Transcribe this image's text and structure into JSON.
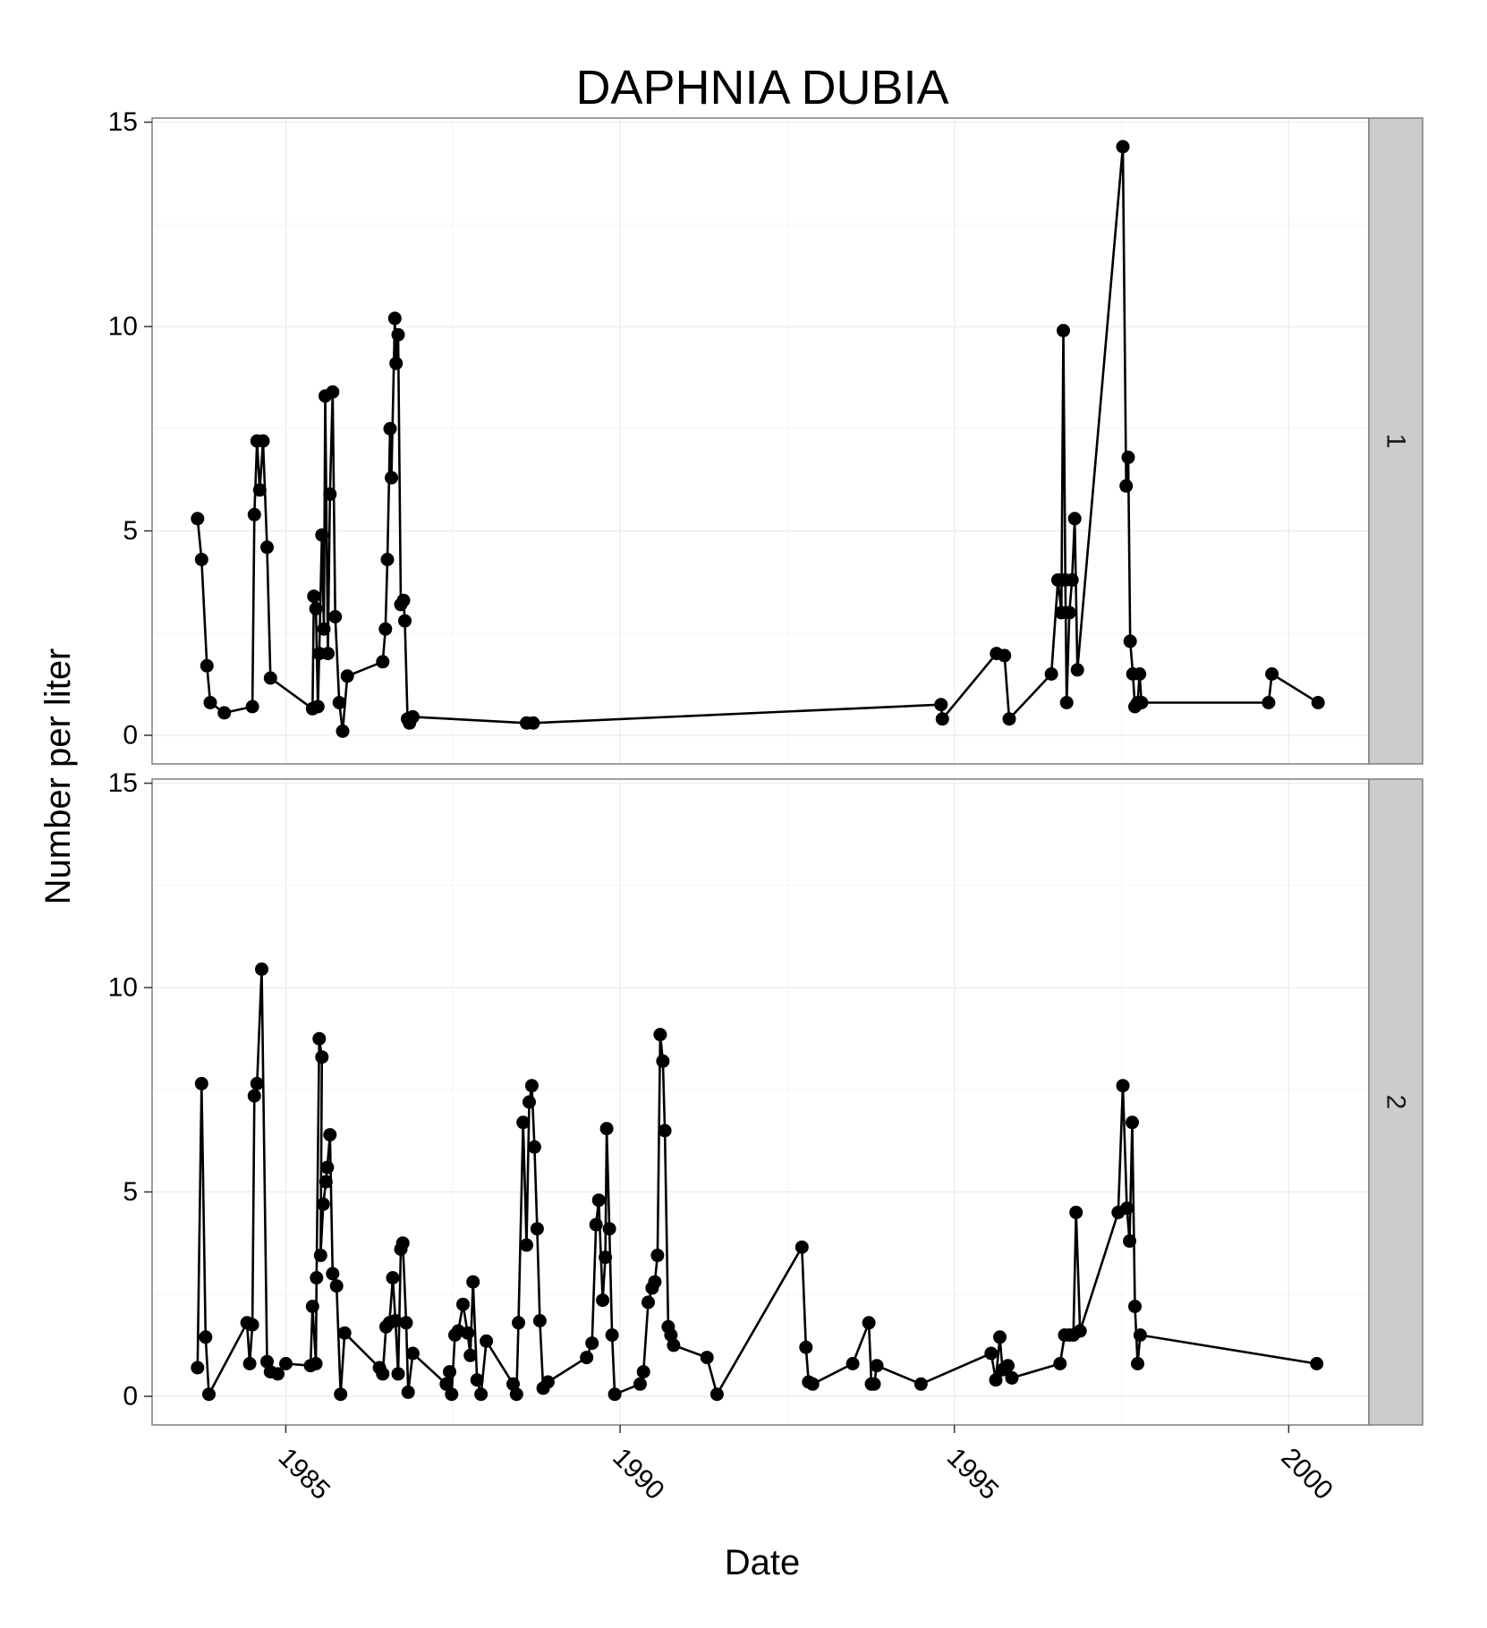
{
  "chart_data": {
    "type": "line",
    "title": "DAPHNIA DUBIA",
    "xlabel": "Date",
    "ylabel": "Number per liter",
    "xlim": [
      1983.0,
      2001.2
    ],
    "ylim": [
      -0.7,
      15.1
    ],
    "x_ticks": [
      1985,
      1990,
      1995,
      2000
    ],
    "x_tick_labels": [
      "1985",
      "1990",
      "1995",
      "2000"
    ],
    "y_ticks": [
      0,
      5,
      10,
      15
    ],
    "y_tick_labels": [
      "0",
      "5",
      "10",
      "15"
    ],
    "grid": true,
    "facet_labels": [
      "1",
      "2"
    ],
    "colors": {
      "line": "#000000",
      "points": "#000000",
      "grid": "#ebebeb",
      "strip": "#cccccc",
      "panel_border": "#7f7f7f"
    },
    "panels": [
      {
        "facet": "1",
        "points": [
          [
            1983.68,
            5.3
          ],
          [
            1983.74,
            4.3
          ],
          [
            1983.82,
            1.7
          ],
          [
            1983.87,
            0.8
          ],
          [
            1984.08,
            0.55
          ],
          [
            1984.5,
            0.7
          ],
          [
            1984.53,
            5.4
          ],
          [
            1984.57,
            7.2
          ],
          [
            1984.61,
            6.0
          ],
          [
            1984.66,
            7.2
          ],
          [
            1984.72,
            4.6
          ],
          [
            1984.77,
            1.4
          ],
          [
            1985.4,
            0.65
          ],
          [
            1985.42,
            3.4
          ],
          [
            1985.45,
            3.1
          ],
          [
            1985.48,
            0.7
          ],
          [
            1985.5,
            2.0
          ],
          [
            1985.54,
            4.9
          ],
          [
            1985.57,
            2.6
          ],
          [
            1985.59,
            8.3
          ],
          [
            1985.63,
            2.0
          ],
          [
            1985.66,
            5.9
          ],
          [
            1985.7,
            8.4
          ],
          [
            1985.74,
            2.9
          ],
          [
            1985.8,
            0.8
          ],
          [
            1985.85,
            0.1
          ],
          [
            1985.92,
            1.45
          ],
          [
            1986.45,
            1.8
          ],
          [
            1986.49,
            2.6
          ],
          [
            1986.52,
            4.3
          ],
          [
            1986.56,
            7.5
          ],
          [
            1986.58,
            6.3
          ],
          [
            1986.63,
            10.2
          ],
          [
            1986.65,
            9.1
          ],
          [
            1986.68,
            9.8
          ],
          [
            1986.72,
            3.2
          ],
          [
            1986.76,
            3.3
          ],
          [
            1986.78,
            2.8
          ],
          [
            1986.82,
            0.4
          ],
          [
            1986.85,
            0.3
          ],
          [
            1986.9,
            0.45
          ],
          [
            1988.6,
            0.3
          ],
          [
            1988.7,
            0.3
          ],
          [
            1994.8,
            0.75
          ],
          [
            1994.82,
            0.4
          ],
          [
            1995.63,
            2.0
          ],
          [
            1995.75,
            1.95
          ],
          [
            1995.82,
            0.4
          ],
          [
            1996.45,
            1.5
          ],
          [
            1996.55,
            3.8
          ],
          [
            1996.6,
            3.0
          ],
          [
            1996.63,
            9.9
          ],
          [
            1996.66,
            3.8
          ],
          [
            1996.68,
            0.8
          ],
          [
            1996.72,
            3.0
          ],
          [
            1996.76,
            3.8
          ],
          [
            1996.8,
            5.3
          ],
          [
            1996.84,
            1.6
          ],
          [
            1997.52,
            14.4
          ],
          [
            1997.57,
            6.1
          ],
          [
            1997.6,
            6.8
          ],
          [
            1997.63,
            2.3
          ],
          [
            1997.67,
            1.5
          ],
          [
            1997.7,
            0.7
          ],
          [
            1997.74,
            0.8
          ],
          [
            1997.77,
            1.5
          ],
          [
            1997.8,
            0.8
          ],
          [
            1999.7,
            0.8
          ],
          [
            1999.75,
            1.5
          ],
          [
            2000.44,
            0.8
          ]
        ]
      },
      {
        "facet": "2",
        "points": [
          [
            1983.68,
            0.7
          ],
          [
            1983.74,
            7.65
          ],
          [
            1983.8,
            1.45
          ],
          [
            1983.85,
            0.05
          ],
          [
            1984.42,
            1.8
          ],
          [
            1984.46,
            0.8
          ],
          [
            1984.5,
            1.75
          ],
          [
            1984.53,
            7.35
          ],
          [
            1984.57,
            7.65
          ],
          [
            1984.64,
            10.45
          ],
          [
            1984.72,
            0.85
          ],
          [
            1984.77,
            0.6
          ],
          [
            1984.88,
            0.55
          ],
          [
            1985.0,
            0.8
          ],
          [
            1985.37,
            0.75
          ],
          [
            1985.4,
            2.2
          ],
          [
            1985.45,
            0.8
          ],
          [
            1985.46,
            2.9
          ],
          [
            1985.5,
            8.75
          ],
          [
            1985.54,
            8.3
          ],
          [
            1985.52,
            3.45
          ],
          [
            1985.56,
            4.7
          ],
          [
            1985.6,
            5.25
          ],
          [
            1985.62,
            5.6
          ],
          [
            1985.66,
            6.4
          ],
          [
            1985.7,
            3.0
          ],
          [
            1985.76,
            2.7
          ],
          [
            1985.82,
            0.05
          ],
          [
            1985.88,
            1.55
          ],
          [
            1986.4,
            0.7
          ],
          [
            1986.45,
            0.55
          ],
          [
            1986.5,
            1.7
          ],
          [
            1986.55,
            1.8
          ],
          [
            1986.6,
            2.9
          ],
          [
            1986.64,
            1.85
          ],
          [
            1986.68,
            0.55
          ],
          [
            1986.72,
            3.6
          ],
          [
            1986.75,
            3.75
          ],
          [
            1986.8,
            1.8
          ],
          [
            1986.83,
            0.1
          ],
          [
            1986.9,
            1.05
          ],
          [
            1987.4,
            0.3
          ],
          [
            1987.45,
            0.6
          ],
          [
            1987.48,
            0.05
          ],
          [
            1987.53,
            1.5
          ],
          [
            1987.58,
            1.6
          ],
          [
            1987.65,
            2.25
          ],
          [
            1987.72,
            1.55
          ],
          [
            1987.76,
            1.0
          ],
          [
            1987.8,
            2.8
          ],
          [
            1987.86,
            0.4
          ],
          [
            1987.92,
            0.05
          ],
          [
            1988.0,
            1.35
          ],
          [
            1988.4,
            0.3
          ],
          [
            1988.45,
            0.05
          ],
          [
            1988.48,
            1.8
          ],
          [
            1988.55,
            6.7
          ],
          [
            1988.6,
            3.7
          ],
          [
            1988.64,
            7.2
          ],
          [
            1988.68,
            7.6
          ],
          [
            1988.72,
            6.1
          ],
          [
            1988.76,
            4.1
          ],
          [
            1988.8,
            1.85
          ],
          [
            1988.85,
            0.2
          ],
          [
            1988.92,
            0.35
          ],
          [
            1989.5,
            0.95
          ],
          [
            1989.58,
            1.3
          ],
          [
            1989.64,
            4.2
          ],
          [
            1989.68,
            4.8
          ],
          [
            1989.74,
            2.35
          ],
          [
            1989.78,
            3.4
          ],
          [
            1989.8,
            6.55
          ],
          [
            1989.84,
            4.1
          ],
          [
            1989.88,
            1.5
          ],
          [
            1989.92,
            0.05
          ],
          [
            1990.3,
            0.3
          ],
          [
            1990.35,
            0.6
          ],
          [
            1990.42,
            2.3
          ],
          [
            1990.48,
            2.65
          ],
          [
            1990.52,
            2.8
          ],
          [
            1990.56,
            3.45
          ],
          [
            1990.6,
            8.85
          ],
          [
            1990.64,
            8.2
          ],
          [
            1990.67,
            6.5
          ],
          [
            1990.72,
            1.7
          ],
          [
            1990.76,
            1.5
          ],
          [
            1990.8,
            1.25
          ],
          [
            1991.3,
            0.95
          ],
          [
            1991.45,
            0.05
          ],
          [
            1992.72,
            3.65
          ],
          [
            1992.78,
            1.2
          ],
          [
            1992.82,
            0.35
          ],
          [
            1992.88,
            0.3
          ],
          [
            1993.48,
            0.8
          ],
          [
            1993.72,
            1.8
          ],
          [
            1993.76,
            0.3
          ],
          [
            1993.8,
            0.3
          ],
          [
            1993.84,
            0.75
          ],
          [
            1994.5,
            0.3
          ],
          [
            1995.55,
            1.05
          ],
          [
            1995.62,
            0.4
          ],
          [
            1995.68,
            1.45
          ],
          [
            1995.72,
            0.65
          ],
          [
            1995.8,
            0.75
          ],
          [
            1995.86,
            0.45
          ],
          [
            1996.58,
            0.8
          ],
          [
            1996.65,
            1.5
          ],
          [
            1996.72,
            1.5
          ],
          [
            1996.78,
            1.5
          ],
          [
            1996.82,
            4.5
          ],
          [
            1996.88,
            1.6
          ],
          [
            1997.45,
            4.5
          ],
          [
            1997.52,
            7.6
          ],
          [
            1997.58,
            4.6
          ],
          [
            1997.62,
            3.8
          ],
          [
            1997.66,
            6.7
          ],
          [
            1997.7,
            2.2
          ],
          [
            1997.74,
            0.8
          ],
          [
            1997.78,
            1.5
          ],
          [
            2000.42,
            0.8
          ]
        ]
      }
    ]
  }
}
